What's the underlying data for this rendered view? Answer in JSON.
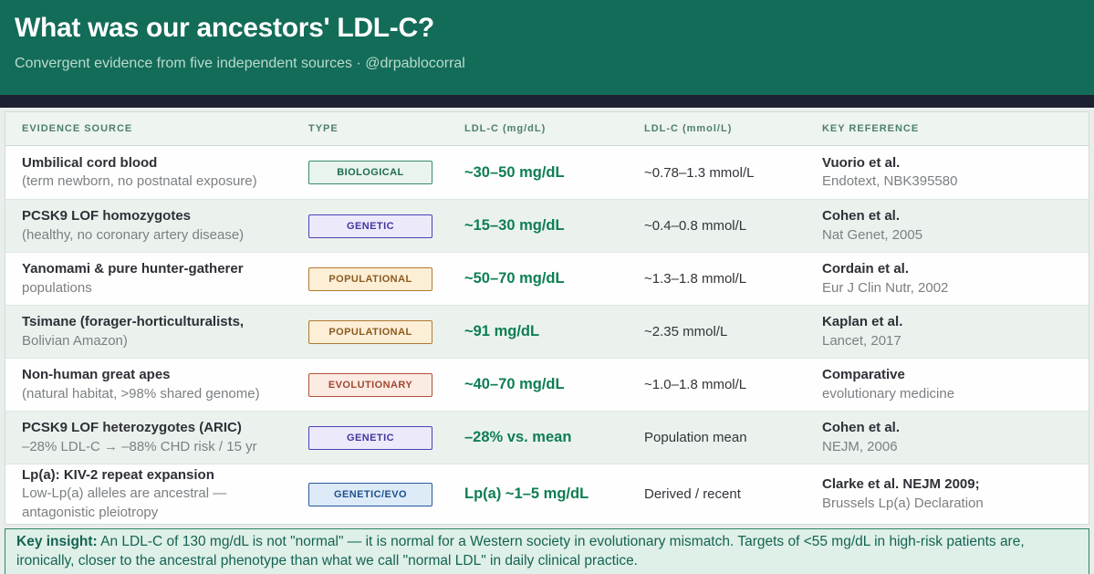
{
  "header": {
    "title": "What was our ancestors' LDL-C?",
    "subtitle": "Convergent evidence from five independent sources  ·  @drpablocorral"
  },
  "table": {
    "columns": [
      "EVIDENCE SOURCE",
      "TYPE",
      "LDL-C (mg/dL)",
      "LDL-C (mmol/L)",
      "KEY REFERENCE"
    ],
    "rows": [
      {
        "source_title": "Umbilical cord blood",
        "source_subtitle": "(term newborn, no postnatal exposure)",
        "type": "BIOLOGICAL",
        "type_key": "biological",
        "mg": "~30–50 mg/dL",
        "mmol": "~0.78–1.3 mmol/L",
        "ref_title": "Vuorio et al.",
        "ref_subtitle": "Endotext, NBK395580"
      },
      {
        "source_title": "PCSK9 LOF homozygotes",
        "source_subtitle": "(healthy, no coronary artery disease)",
        "type": "GENETIC",
        "type_key": "genetic",
        "mg": "~15–30 mg/dL",
        "mmol": "~0.4–0.8 mmol/L",
        "ref_title": "Cohen et al.",
        "ref_subtitle": "Nat Genet, 2005"
      },
      {
        "source_title": "Yanomami & pure hunter-gatherer",
        "source_subtitle": "populations",
        "type": "POPULATIONAL",
        "type_key": "populational",
        "mg": "~50–70 mg/dL",
        "mmol": "~1.3–1.8 mmol/L",
        "ref_title": "Cordain et al.",
        "ref_subtitle": "Eur J Clin Nutr, 2002"
      },
      {
        "source_title": "Tsimane (forager-horticulturalists,",
        "source_subtitle": "Bolivian Amazon)",
        "type": "POPULATIONAL",
        "type_key": "populational",
        "mg": "~91 mg/dL",
        "mmol": "~2.35 mmol/L",
        "ref_title": "Kaplan et al.",
        "ref_subtitle": "Lancet, 2017"
      },
      {
        "source_title": "Non-human great apes",
        "source_subtitle": "(natural habitat, >98% shared genome)",
        "type": "EVOLUTIONARY",
        "type_key": "evolutionary",
        "mg": "~40–70 mg/dL",
        "mmol": "~1.0–1.8 mmol/L",
        "ref_title": "Comparative",
        "ref_subtitle": "evolutionary medicine"
      },
      {
        "source_title": "PCSK9 LOF heterozygotes (ARIC)",
        "source_subtitle": "–28% LDL-C → –88% CHD risk / 15 yr",
        "type": "GENETIC",
        "type_key": "genetic",
        "mg": "–28% vs. mean",
        "mmol": "Population mean",
        "ref_title": "Cohen et al.",
        "ref_subtitle": "NEJM, 2006"
      },
      {
        "source_title": "Lp(a): KIV-2 repeat expansion",
        "source_subtitle": "Low-Lp(a) alleles are ancestral — antagonistic pleiotropy",
        "type": "GENETIC/EVO",
        "type_key": "genetic-evo",
        "mg": "Lp(a) ~1–5 mg/dL",
        "mmol": "Derived / recent",
        "ref_title": "Clarke et al. NEJM 2009;",
        "ref_subtitle": "Brussels Lp(a) Declaration"
      }
    ]
  },
  "footer": {
    "label": "Key insight:",
    "text": " An LDL-C of 130 mg/dL is not \"normal\" — it is normal for a Western society in evolutionary mismatch. Targets of <55 mg/dL in high-risk patients are, ironically, closer to the ancestral phenotype than what we call \"normal LDL\" in daily clinical practice."
  },
  "colors": {
    "header_bg": "#136c58",
    "navy_bar": "#1c2231",
    "page_bg": "#e9edeb",
    "value_green": "#0e7e52",
    "footer_bg": "#def0e7",
    "footer_border": "#2e8566",
    "footer_text": "#156354",
    "badge_biological_bg": "#e8f4ed",
    "badge_biological_border": "#3a8a6a",
    "badge_biological_text": "#1d6b4f",
    "badge_genetic_bg": "#ece9fb",
    "badge_genetic_border": "#4f3fb5",
    "badge_genetic_text": "#41379e",
    "badge_populational_bg": "#fdeed6",
    "badge_populational_border": "#b07a30",
    "badge_populational_text": "#8a5c20",
    "badge_evolutionary_bg": "#fcebe3",
    "badge_evolutionary_border": "#b05038",
    "badge_evolutionary_text": "#a04830",
    "badge_genetic_evo_bg": "#ddeaf7",
    "badge_genetic_evo_border": "#2a5a9a",
    "badge_genetic_evo_text": "#1d4f8c"
  },
  "chart_data": {
    "type": "table",
    "title": "What was our ancestors' LDL-C?",
    "columns": [
      "EVIDENCE SOURCE",
      "TYPE",
      "LDL-C (mg/dL)",
      "LDL-C (mmol/L)",
      "KEY REFERENCE"
    ],
    "rows": [
      [
        "Umbilical cord blood (term newborn, no postnatal exposure)",
        "BIOLOGICAL",
        "~30–50 mg/dL",
        "~0.78–1.3 mmol/L",
        "Vuorio et al. Endotext, NBK395580"
      ],
      [
        "PCSK9 LOF homozygotes (healthy, no coronary artery disease)",
        "GENETIC",
        "~15–30 mg/dL",
        "~0.4–0.8 mmol/L",
        "Cohen et al. Nat Genet, 2005"
      ],
      [
        "Yanomami & pure hunter-gatherer populations",
        "POPULATIONAL",
        "~50–70 mg/dL",
        "~1.3–1.8 mmol/L",
        "Cordain et al. Eur J Clin Nutr, 2002"
      ],
      [
        "Tsimane (forager-horticulturalists, Bolivian Amazon)",
        "POPULATIONAL",
        "~91 mg/dL",
        "~2.35 mmol/L",
        "Kaplan et al. Lancet, 2017"
      ],
      [
        "Non-human great apes (natural habitat, >98% shared genome)",
        "EVOLUTIONARY",
        "~40–70 mg/dL",
        "~1.0–1.8 mmol/L",
        "Comparative evolutionary medicine"
      ],
      [
        "PCSK9 LOF heterozygotes (ARIC) –28% LDL-C → –88% CHD risk / 15 yr",
        "GENETIC",
        "–28% vs. mean",
        "Population mean",
        "Cohen et al. NEJM, 2006"
      ],
      [
        "Lp(a): KIV-2 repeat expansion — Low-Lp(a) alleles are ancestral — antagonistic pleiotropy",
        "GENETIC/EVO",
        "Lp(a) ~1–5 mg/dL",
        "Derived / recent",
        "Clarke et al. NEJM 2009; Brussels Lp(a) Declaration"
      ]
    ]
  }
}
